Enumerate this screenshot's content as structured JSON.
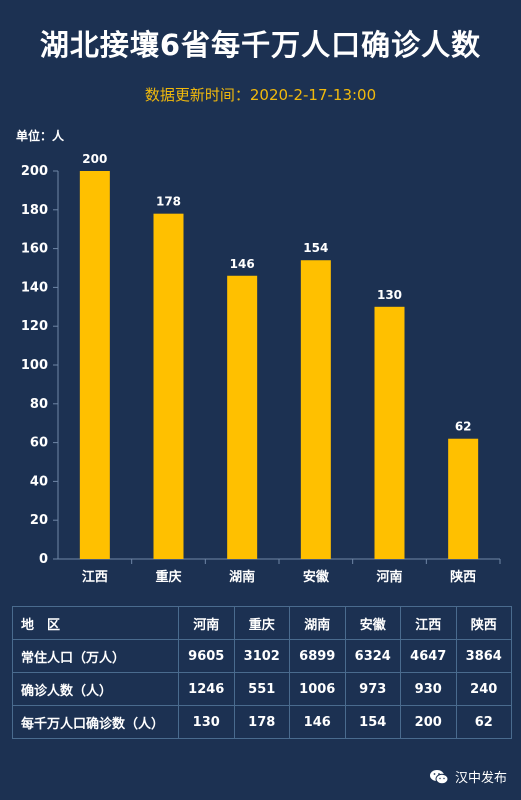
{
  "header": {
    "title": "湖北接壤6省每千万人口确诊人数",
    "subtitle": "数据更新时间：2020-2-17-13:00",
    "unit": "单位：人"
  },
  "chart_data": {
    "type": "bar",
    "categories": [
      "江西",
      "重庆",
      "湖南",
      "安徽",
      "河南",
      "陕西"
    ],
    "values": [
      200,
      178,
      146,
      154,
      130,
      62
    ],
    "ylim": [
      0,
      200
    ],
    "yticks": [
      0,
      20,
      40,
      60,
      80,
      100,
      120,
      140,
      160,
      180,
      200
    ],
    "bar_color": "#ffc000",
    "grid": false
  },
  "table": {
    "header": [
      "地　区",
      "河南",
      "重庆",
      "湖南",
      "安徽",
      "江西",
      "陕西"
    ],
    "rows": [
      [
        "常住人口（万人）",
        "9605",
        "3102",
        "6899",
        "6324",
        "4647",
        "3864"
      ],
      [
        "确诊人数（人）",
        "1246",
        "551",
        "1006",
        "973",
        "930",
        "240"
      ],
      [
        "每千万人口确诊数（人）",
        "130",
        "178",
        "146",
        "154",
        "200",
        "62"
      ]
    ]
  },
  "footer": {
    "source": "汉中发布",
    "icon": "wechat-icon"
  }
}
